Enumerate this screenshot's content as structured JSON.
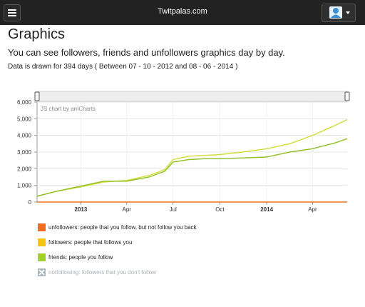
{
  "navbar": {
    "title": "Twitpalas.com",
    "menu_icon": "hamburger-menu-icon",
    "avatar_icon": "user-avatar-icon",
    "dropdown_icon": "caret-down-icon"
  },
  "page": {
    "heading": "Graphics",
    "subtitle": "You can see followers, friends and unfollowers graphics day by day.",
    "note": "Data is drawn for 394 days ( Between 07 - 10 - 2012 and 08 - 06 - 2014 )"
  },
  "chart_data": {
    "type": "line",
    "credit": "JS chart by amCharts",
    "y_ticks": [
      "0",
      "1,000",
      "2,000",
      "3,000",
      "4,000",
      "5,000",
      "6,000"
    ],
    "x_ticks": [
      {
        "label": "2013",
        "bold": true
      },
      {
        "label": "Apr",
        "bold": false
      },
      {
        "label": "Jul",
        "bold": false
      },
      {
        "label": "Oct",
        "bold": false
      },
      {
        "label": "2014",
        "bold": true
      },
      {
        "label": "Apr",
        "bold": false
      }
    ],
    "x_tick_dates": [
      "2013-01-01",
      "2013-04-01",
      "2013-07-01",
      "2013-10-01",
      "2014-01-01",
      "2014-04-01"
    ],
    "ylim": [
      0,
      6000
    ],
    "xlim": [
      "2012-10-07",
      "2014-06-08"
    ],
    "grid": true,
    "series": [
      {
        "name": "followers",
        "color": "#d4dc3a",
        "x": [
          "2012-10-07",
          "2012-11-15",
          "2012-12-31",
          "2013-02-15",
          "2013-04-01",
          "2013-05-15",
          "2013-06-15",
          "2013-07-01",
          "2013-08-01",
          "2013-09-01",
          "2013-10-01",
          "2013-11-15",
          "2014-01-01",
          "2014-02-15",
          "2014-04-01",
          "2014-05-15",
          "2014-06-08"
        ],
        "y": [
          350,
          650,
          900,
          1200,
          1300,
          1600,
          1950,
          2550,
          2750,
          2800,
          2850,
          3000,
          3200,
          3500,
          4000,
          4600,
          4950
        ]
      },
      {
        "name": "friends",
        "color": "#8fbf22",
        "x": [
          "2012-10-07",
          "2012-11-15",
          "2012-12-31",
          "2013-02-15",
          "2013-04-01",
          "2013-05-15",
          "2013-06-15",
          "2013-07-01",
          "2013-08-01",
          "2013-09-01",
          "2013-10-01",
          "2013-11-15",
          "2014-01-01",
          "2014-02-15",
          "2014-04-01",
          "2014-05-15",
          "2014-06-08"
        ],
        "y": [
          350,
          650,
          950,
          1250,
          1250,
          1500,
          1850,
          2400,
          2550,
          2600,
          2600,
          2650,
          2700,
          3000,
          3200,
          3550,
          3800
        ]
      },
      {
        "name": "unfollowers",
        "color": "#e8731e",
        "x": [
          "2012-10-07",
          "2014-06-08"
        ],
        "y": [
          0,
          0
        ]
      }
    ]
  },
  "legend": [
    {
      "label": "unfollowers: people that you follow, but not follow you back",
      "color": "#f26d21",
      "enabled": true
    },
    {
      "label": "followers: people that follows you",
      "color": "#f6c515",
      "enabled": true
    },
    {
      "label": "friends: people you follow",
      "color": "#a3d12a",
      "enabled": true
    },
    {
      "label": "notfollowing: followers that you don't follow",
      "color": "#aab6c0",
      "enabled": false
    }
  ]
}
